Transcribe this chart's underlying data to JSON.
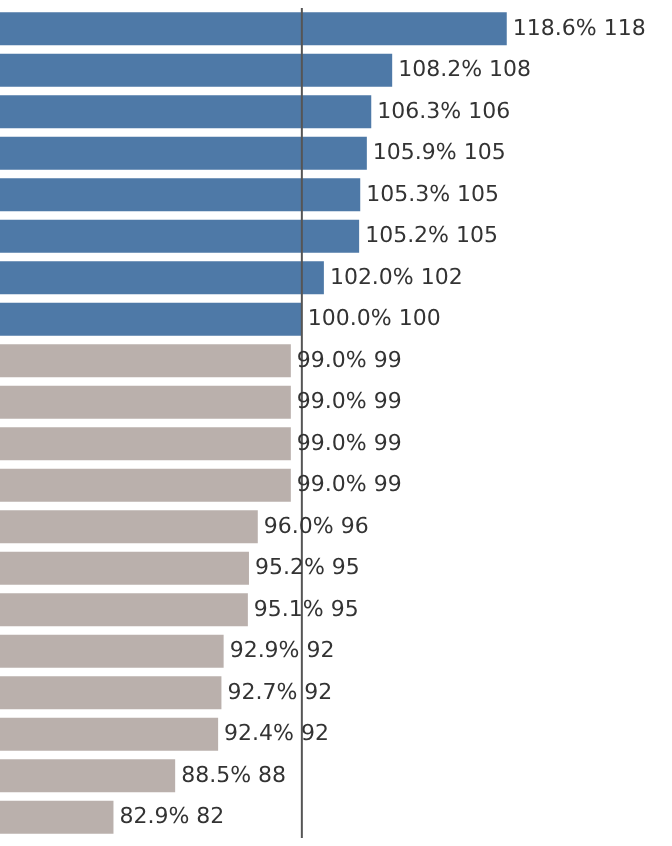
{
  "chart_data": {
    "type": "bar",
    "orientation": "horizontal",
    "categories": [
      null,
      null,
      null,
      null,
      null,
      null,
      null,
      null,
      null,
      null,
      null,
      null,
      null,
      null,
      null,
      null,
      null,
      null,
      null,
      null
    ],
    "values": [
      118.6,
      108.2,
      106.3,
      105.9,
      105.3,
      105.2,
      102.0,
      100.0,
      99.0,
      99.0,
      99.0,
      99.0,
      96.0,
      95.2,
      95.1,
      92.9,
      92.7,
      92.4,
      88.5,
      82.9
    ],
    "colors": [
      "#4e79a7",
      "#4e79a7",
      "#4e79a7",
      "#4e79a7",
      "#4e79a7",
      "#4e79a7",
      "#4e79a7",
      "#4e79a7",
      "#bab0ac",
      "#bab0ac",
      "#bab0ac",
      "#bab0ac",
      "#bab0ac",
      "#bab0ac",
      "#bab0ac",
      "#bab0ac",
      "#bab0ac",
      "#bab0ac",
      "#bab0ac",
      "#bab0ac"
    ],
    "value_labels": [
      "118.6% 118",
      "108.2% 108",
      "106.3% 106",
      "105.9% 105",
      "105.3% 105",
      "105.2% 105",
      "102.0% 102",
      "100.0% 100",
      "99.0% 99",
      "99.0% 99",
      "99.0% 99",
      "99.0% 99",
      "96.0% 96",
      "95.2% 95",
      "95.1% 95",
      "92.9% 92",
      "92.7% 92",
      "92.4% 92",
      "88.5% 88",
      "82.9% 82"
    ],
    "xlim": [
      72.6,
      133.6
    ],
    "ref_lines": [
      {
        "axis": "x",
        "value": 100,
        "color": "#555555"
      }
    ]
  }
}
